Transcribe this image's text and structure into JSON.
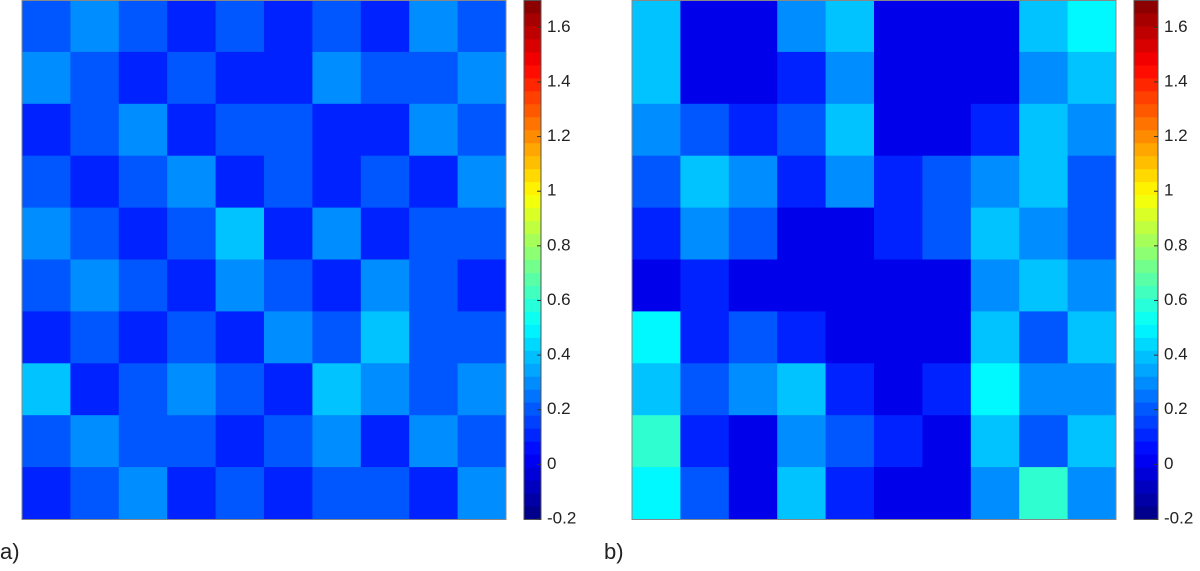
{
  "chart_data": [
    {
      "type": "heatmap",
      "panel_label": "a)",
      "colormap": "jet",
      "clim": [
        -0.2,
        1.7
      ],
      "cticks": [
        -0.2,
        0,
        0.2,
        0.4,
        0.6,
        0.8,
        1,
        1.2,
        1.4,
        1.6
      ],
      "z": [
        [
          0.2,
          0.3,
          0.2,
          0.1,
          0.2,
          0.1,
          0.2,
          0.1,
          0.3,
          0.2
        ],
        [
          0.3,
          0.2,
          0.1,
          0.2,
          0.1,
          0.1,
          0.3,
          0.2,
          0.2,
          0.3
        ],
        [
          0.1,
          0.2,
          0.3,
          0.1,
          0.2,
          0.2,
          0.1,
          0.1,
          0.3,
          0.2
        ],
        [
          0.2,
          0.1,
          0.2,
          0.3,
          0.1,
          0.2,
          0.1,
          0.2,
          0.1,
          0.3
        ],
        [
          0.3,
          0.2,
          0.1,
          0.2,
          0.4,
          0.1,
          0.3,
          0.1,
          0.2,
          0.2
        ],
        [
          0.2,
          0.3,
          0.2,
          0.1,
          0.3,
          0.2,
          0.1,
          0.3,
          0.2,
          0.1
        ],
        [
          0.1,
          0.2,
          0.1,
          0.2,
          0.1,
          0.3,
          0.2,
          0.4,
          0.2,
          0.2
        ],
        [
          0.4,
          0.1,
          0.2,
          0.3,
          0.2,
          0.1,
          0.4,
          0.3,
          0.2,
          0.3
        ],
        [
          0.2,
          0.3,
          0.2,
          0.2,
          0.1,
          0.2,
          0.3,
          0.1,
          0.3,
          0.2
        ],
        [
          0.1,
          0.2,
          0.3,
          0.1,
          0.2,
          0.1,
          0.2,
          0.2,
          0.1,
          0.3
        ]
      ]
    },
    {
      "type": "heatmap",
      "panel_label": "b)",
      "colormap": "jet",
      "clim": [
        -0.2,
        1.7
      ],
      "cticks": [
        -0.2,
        0,
        0.2,
        0.4,
        0.6,
        0.8,
        1,
        1.2,
        1.4,
        1.6
      ],
      "z": [
        [
          0.4,
          0,
          0,
          0.3,
          0.4,
          0,
          0,
          0,
          0.4,
          0.5
        ],
        [
          0.4,
          0,
          0,
          0.1,
          0.3,
          0,
          0,
          0,
          0.3,
          0.4
        ],
        [
          0.3,
          0.2,
          0.1,
          0.2,
          0.4,
          0,
          0,
          0.1,
          0.4,
          0.3
        ],
        [
          0.2,
          0.4,
          0.3,
          0.1,
          0.3,
          0.1,
          0.2,
          0.3,
          0.4,
          0.2
        ],
        [
          0.1,
          0.3,
          0.2,
          0,
          0,
          0.1,
          0.2,
          0.4,
          0.3,
          0.2
        ],
        [
          0,
          0.1,
          0,
          0,
          0,
          0,
          0,
          0.3,
          0.4,
          0.3
        ],
        [
          0.5,
          0.1,
          0.2,
          0.1,
          0,
          0,
          0,
          0.4,
          0.2,
          0.4
        ],
        [
          0.4,
          0.2,
          0.3,
          0.4,
          0.1,
          0,
          0.1,
          0.5,
          0.3,
          0.3
        ],
        [
          0.6,
          0.1,
          0,
          0.3,
          0.2,
          0.1,
          0,
          0.4,
          0.2,
          0.4
        ],
        [
          0.5,
          0.2,
          0,
          0.4,
          0.1,
          0,
          0,
          0.3,
          0.6,
          0.3
        ]
      ]
    }
  ]
}
